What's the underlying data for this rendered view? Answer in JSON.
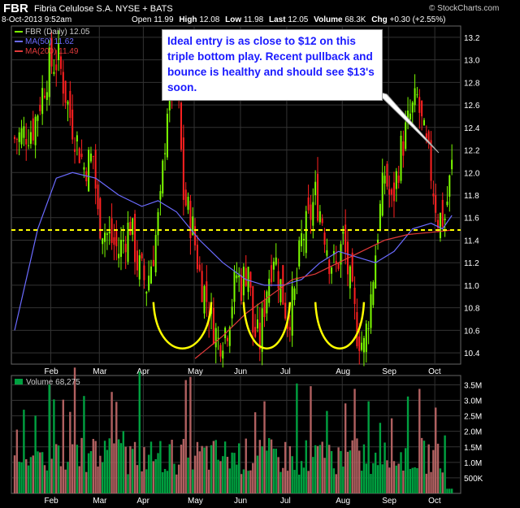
{
  "header": {
    "symbol": "FBR",
    "name": "Fibria Celulose S.A. NYSE + BATS",
    "timestamp": "8-Oct-2013 9:52am",
    "open_label": "Open",
    "open": "11.99",
    "high_label": "High",
    "high": "12.08",
    "low_label": "Low",
    "low": "11.98",
    "last_label": "Last",
    "last": "12.05",
    "volume_label": "Volume",
    "volume": "68.3K",
    "chg_label": "Chg",
    "chg": "+0.30 (+2.55%)",
    "brand": "© StockCharts.com"
  },
  "annotation": {
    "text": "Ideal entry is as close to $12 on this triple bottom play. Recent pullback and bounce is healthy and should see $13's soon."
  },
  "colors": {
    "up": "#7CFC00",
    "down": "#FF2020",
    "ma50": "#6B6BFF",
    "ma200": "#E33A3A",
    "support": "#FFFF00",
    "volume_up": "#00A040",
    "volume_down": "#B06060"
  },
  "chart_data": [
    {
      "type": "candlestick",
      "legend": [
        "FBR (Daily) 12.05",
        "MA(50) 11.62",
        "MA(200) 11.49"
      ],
      "x_tick_labels": [
        "Feb",
        "Mar",
        "Apr",
        "May",
        "Jun",
        "Jul",
        "Aug",
        "Sep",
        "Oct"
      ],
      "y_tick_labels": [
        "10.4",
        "10.6",
        "10.8",
        "11.0",
        "11.2",
        "11.4",
        "11.6",
        "11.8",
        "12.0",
        "12.2",
        "12.4",
        "12.6",
        "12.8",
        "13.0",
        "13.2"
      ],
      "ylim": [
        10.3,
        13.3
      ],
      "support_level": 11.49,
      "close_path": [
        [
          0,
          12.3
        ],
        [
          8,
          12.4
        ],
        [
          15,
          12.95
        ],
        [
          19,
          13.0
        ],
        [
          24,
          12.5
        ],
        [
          30,
          12.05
        ],
        [
          34,
          12.15
        ],
        [
          36,
          11.6
        ],
        [
          40,
          11.45
        ],
        [
          45,
          11.3
        ],
        [
          50,
          11.55
        ],
        [
          53,
          11.2
        ],
        [
          57,
          11.0
        ],
        [
          60,
          11.3
        ],
        [
          63,
          11.7
        ],
        [
          66,
          12.6
        ],
        [
          70,
          12.9
        ],
        [
          73,
          11.8
        ],
        [
          77,
          11.5
        ],
        [
          80,
          11.1
        ],
        [
          84,
          10.8
        ],
        [
          88,
          10.5
        ],
        [
          92,
          10.65
        ],
        [
          96,
          11.1
        ],
        [
          98,
          11.0
        ],
        [
          101,
          11.2
        ],
        [
          103,
          10.6
        ],
        [
          106,
          10.5
        ],
        [
          109,
          11.0
        ],
        [
          112,
          11.3
        ],
        [
          115,
          11.0
        ],
        [
          118,
          10.7
        ],
        [
          121,
          10.9
        ],
        [
          124,
          11.4
        ],
        [
          127,
          11.55
        ],
        [
          130,
          11.8
        ],
        [
          133,
          11.6
        ],
        [
          136,
          11.25
        ],
        [
          139,
          11.15
        ],
        [
          142,
          11.4
        ],
        [
          145,
          11.0
        ],
        [
          148,
          10.6
        ],
        [
          151,
          10.45
        ],
        [
          154,
          10.9
        ],
        [
          157,
          11.5
        ],
        [
          160,
          12.0
        ],
        [
          163,
          11.7
        ],
        [
          167,
          12.2
        ],
        [
          171,
          12.5
        ],
        [
          174,
          12.65
        ],
        [
          177,
          12.3
        ],
        [
          180,
          12.0
        ],
        [
          183,
          11.6
        ],
        [
          186,
          11.6
        ],
        [
          189,
          12.05
        ]
      ],
      "ma50": [
        [
          0,
          10.6
        ],
        [
          10,
          11.5
        ],
        [
          18,
          11.95
        ],
        [
          25,
          12.0
        ],
        [
          35,
          11.95
        ],
        [
          45,
          11.8
        ],
        [
          55,
          11.7
        ],
        [
          62,
          11.75
        ],
        [
          70,
          11.65
        ],
        [
          80,
          11.4
        ],
        [
          90,
          11.2
        ],
        [
          100,
          11.05
        ],
        [
          108,
          11.0
        ],
        [
          116,
          11.0
        ],
        [
          124,
          11.05
        ],
        [
          132,
          11.2
        ],
        [
          140,
          11.3
        ],
        [
          148,
          11.25
        ],
        [
          156,
          11.2
        ],
        [
          164,
          11.3
        ],
        [
          172,
          11.5
        ],
        [
          180,
          11.55
        ],
        [
          185,
          11.5
        ],
        [
          189,
          11.62
        ]
      ],
      "ma200": [
        [
          78,
          10.35
        ],
        [
          90,
          10.55
        ],
        [
          100,
          10.75
        ],
        [
          110,
          10.9
        ],
        [
          120,
          11.05
        ],
        [
          130,
          11.1
        ],
        [
          140,
          11.2
        ],
        [
          150,
          11.3
        ],
        [
          160,
          11.4
        ],
        [
          170,
          11.45
        ],
        [
          180,
          11.47
        ],
        [
          189,
          11.49
        ]
      ],
      "bottom_arcs": [
        [
          60,
          85
        ],
        [
          99,
          119
        ],
        [
          130,
          151
        ]
      ]
    },
    {
      "type": "bar",
      "legend": "Volume 68,275",
      "y_tick_labels": [
        "3.5M",
        "3.0M",
        "2.5M",
        "2.0M",
        "1.5M",
        "1.0M",
        "500K"
      ],
      "ylim": [
        0,
        3.8
      ]
    }
  ]
}
